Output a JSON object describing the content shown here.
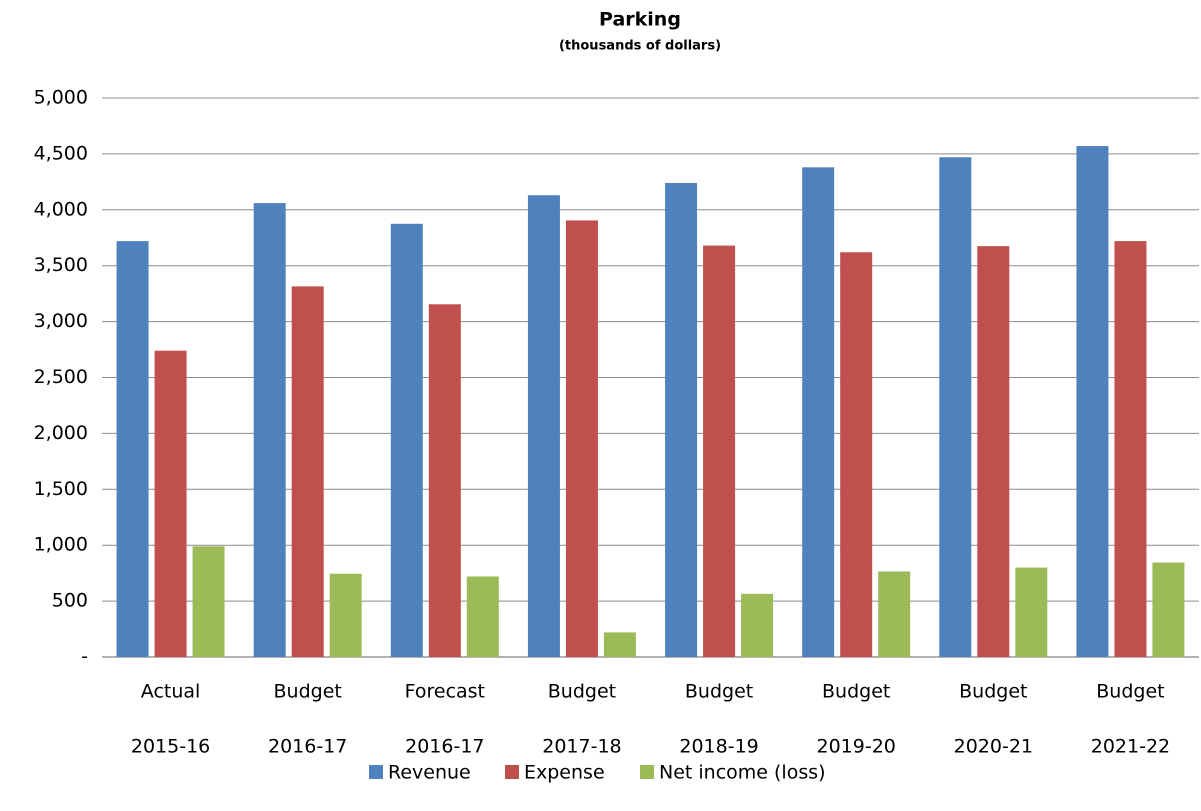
{
  "chart_data": {
    "type": "bar",
    "title": "Parking",
    "subtitle": "(thousands of dollars)",
    "categories": [
      [
        "Actual",
        "2015-16"
      ],
      [
        "Budget",
        "2016-17"
      ],
      [
        "Forecast",
        "2016-17"
      ],
      [
        "Budget",
        "2017-18"
      ],
      [
        "Budget",
        "2018-19"
      ],
      [
        "Budget",
        "2019-20"
      ],
      [
        "Budget",
        "2020-21"
      ],
      [
        "Budget",
        "2021-22"
      ]
    ],
    "series": [
      {
        "name": "Revenue",
        "color": "#4f81bd",
        "values": [
          3720,
          4060,
          3875,
          4130,
          4240,
          4380,
          4470,
          4570
        ]
      },
      {
        "name": "Expense",
        "color": "#c0504d",
        "values": [
          2740,
          3315,
          3155,
          3905,
          3680,
          3620,
          3675,
          3720
        ]
      },
      {
        "name": "Net income (loss)",
        "color": "#9bbb59",
        "values": [
          990,
          745,
          720,
          220,
          565,
          765,
          800,
          845
        ]
      }
    ],
    "ylim": [
      0,
      5000
    ],
    "yticks": [
      {
        "value": 0,
        "label": "-"
      },
      500,
      {
        "value": 1000,
        "label": "1,000"
      },
      {
        "value": 1500,
        "label": "1,500"
      },
      {
        "value": 2000,
        "label": "2,000"
      },
      {
        "value": 2500,
        "label": "2,500"
      },
      {
        "value": 3000,
        "label": "3,000"
      },
      {
        "value": 3500,
        "label": "3,500"
      },
      {
        "value": 4000,
        "label": "4,000"
      },
      {
        "value": 4500,
        "label": "4,500"
      },
      {
        "value": 5000,
        "label": "5,000"
      }
    ],
    "grid": true,
    "legend": "bottom"
  }
}
